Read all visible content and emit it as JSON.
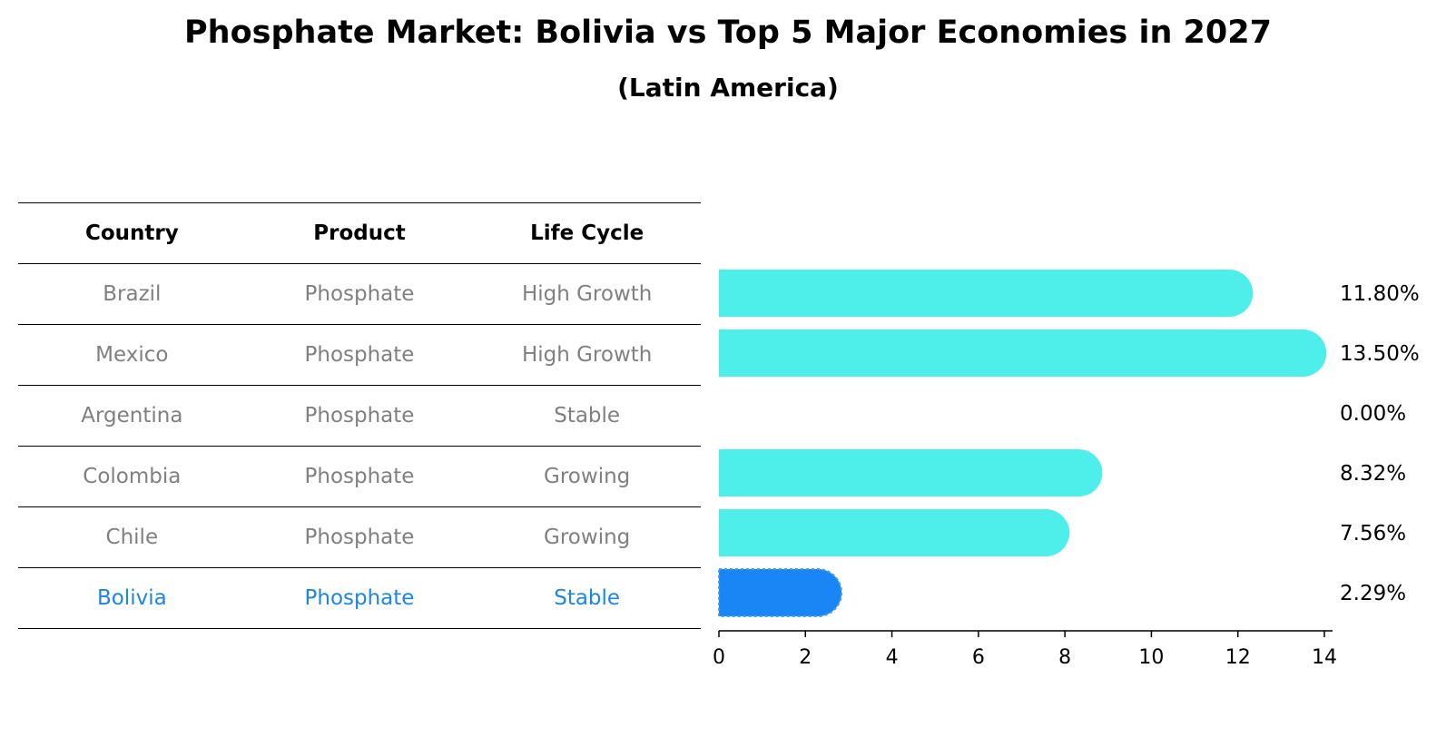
{
  "title": "Phosphate Market: Bolivia vs Top 5 Major Economies in 2027",
  "subtitle": "(Latin America)",
  "table": {
    "headers": [
      "Country",
      "Product",
      "Life Cycle"
    ],
    "rows": [
      {
        "country": "Brazil",
        "product": "Phosphate",
        "life_cycle": "High Growth",
        "highlight": false
      },
      {
        "country": "Mexico",
        "product": "Phosphate",
        "life_cycle": "High Growth",
        "highlight": false
      },
      {
        "country": "Argentina",
        "product": "Phosphate",
        "life_cycle": "Stable",
        "highlight": false
      },
      {
        "country": "Colombia",
        "product": "Phosphate",
        "life_cycle": "Growing",
        "highlight": false
      },
      {
        "country": "Chile",
        "product": "Phosphate",
        "life_cycle": "Growing",
        "highlight": false
      },
      {
        "country": "Bolivia",
        "product": "Phosphate",
        "life_cycle": "Stable",
        "highlight": true
      }
    ]
  },
  "chart_data": {
    "type": "bar",
    "orientation": "horizontal",
    "categories": [
      "Brazil",
      "Mexico",
      "Argentina",
      "Colombia",
      "Chile",
      "Bolivia"
    ],
    "values": [
      11.8,
      13.5,
      0.0,
      8.32,
      7.56,
      2.29
    ],
    "value_labels": [
      "11.80%",
      "13.50%",
      "0.00%",
      "8.32%",
      "7.56%",
      "2.29%"
    ],
    "highlight": "Bolivia",
    "xlim": [
      0,
      14
    ],
    "xticks": [
      0,
      2,
      4,
      6,
      8,
      10,
      12,
      14
    ],
    "colors": {
      "default": "#4eeeea",
      "highlight": "#1a86f5"
    },
    "grid": false
  }
}
